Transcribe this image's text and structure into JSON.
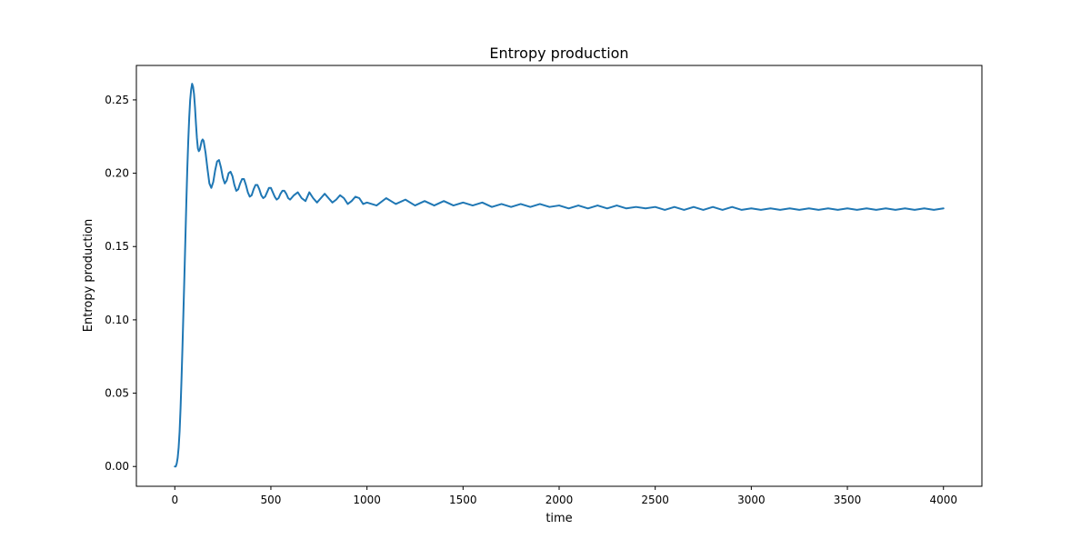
{
  "chart_data": {
    "type": "line",
    "title": "Entropy production",
    "xlabel": "time",
    "ylabel": "Entropy production",
    "xlim": [
      -200,
      4200
    ],
    "ylim": [
      -0.0135,
      0.2735
    ],
    "xticks": [
      0,
      500,
      1000,
      1500,
      2000,
      2500,
      3000,
      3500,
      4000
    ],
    "xtick_labels": [
      "0",
      "500",
      "1000",
      "1500",
      "2000",
      "2500",
      "3000",
      "3500",
      "4000"
    ],
    "yticks": [
      0.0,
      0.05,
      0.1,
      0.15,
      0.2,
      0.25
    ],
    "ytick_labels": [
      "0.00",
      "0.05",
      "0.10",
      "0.15",
      "0.20",
      "0.25"
    ],
    "grid": false,
    "series_color": "#1f77b4",
    "series": [
      {
        "x": [
          0,
          5,
          10,
          15,
          20,
          25,
          30,
          35,
          40,
          45,
          50,
          55,
          60,
          65,
          70,
          75,
          80,
          85,
          90,
          95,
          100,
          105,
          110,
          115,
          120,
          125,
          130,
          135,
          140,
          145,
          150,
          155,
          160,
          170,
          180,
          190,
          200,
          210,
          220,
          230,
          240,
          250,
          260,
          270,
          280,
          290,
          300,
          310,
          320,
          330,
          340,
          350,
          360,
          370,
          380,
          390,
          400,
          410,
          420,
          430,
          440,
          450,
          460,
          470,
          480,
          490,
          500,
          510,
          520,
          530,
          540,
          550,
          560,
          570,
          580,
          590,
          600,
          620,
          640,
          660,
          680,
          700,
          720,
          740,
          760,
          780,
          800,
          820,
          840,
          860,
          880,
          900,
          920,
          940,
          960,
          980,
          1000,
          1050,
          1100,
          1150,
          1200,
          1250,
          1300,
          1350,
          1400,
          1450,
          1500,
          1550,
          1600,
          1650,
          1700,
          1750,
          1800,
          1850,
          1900,
          1950,
          2000,
          2050,
          2100,
          2150,
          2200,
          2250,
          2300,
          2350,
          2400,
          2450,
          2500,
          2550,
          2600,
          2650,
          2700,
          2750,
          2800,
          2850,
          2900,
          2950,
          3000,
          3050,
          3100,
          3150,
          3200,
          3250,
          3300,
          3350,
          3400,
          3450,
          3500,
          3550,
          3600,
          3650,
          3700,
          3750,
          3800,
          3850,
          3900,
          3950,
          4000
        ],
        "y": [
          0.0,
          0.0,
          0.002,
          0.006,
          0.013,
          0.024,
          0.04,
          0.06,
          0.082,
          0.106,
          0.13,
          0.155,
          0.18,
          0.203,
          0.222,
          0.238,
          0.25,
          0.257,
          0.261,
          0.259,
          0.254,
          0.245,
          0.234,
          0.224,
          0.217,
          0.215,
          0.216,
          0.219,
          0.222,
          0.223,
          0.222,
          0.218,
          0.214,
          0.203,
          0.193,
          0.19,
          0.194,
          0.202,
          0.208,
          0.209,
          0.204,
          0.197,
          0.193,
          0.195,
          0.2,
          0.201,
          0.198,
          0.192,
          0.188,
          0.189,
          0.193,
          0.196,
          0.196,
          0.192,
          0.187,
          0.184,
          0.185,
          0.189,
          0.192,
          0.192,
          0.189,
          0.185,
          0.183,
          0.184,
          0.187,
          0.19,
          0.19,
          0.187,
          0.184,
          0.182,
          0.183,
          0.186,
          0.188,
          0.188,
          0.186,
          0.183,
          0.182,
          0.185,
          0.187,
          0.183,
          0.181,
          0.187,
          0.183,
          0.18,
          0.183,
          0.186,
          0.183,
          0.18,
          0.182,
          0.185,
          0.183,
          0.179,
          0.181,
          0.184,
          0.183,
          0.179,
          0.18,
          0.178,
          0.183,
          0.179,
          0.182,
          0.178,
          0.181,
          0.178,
          0.181,
          0.178,
          0.18,
          0.178,
          0.18,
          0.177,
          0.179,
          0.177,
          0.179,
          0.177,
          0.179,
          0.177,
          0.178,
          0.176,
          0.178,
          0.176,
          0.178,
          0.176,
          0.178,
          0.176,
          0.177,
          0.176,
          0.177,
          0.175,
          0.177,
          0.175,
          0.177,
          0.175,
          0.177,
          0.175,
          0.177,
          0.175,
          0.176,
          0.175,
          0.176,
          0.175,
          0.176,
          0.175,
          0.176,
          0.175,
          0.176,
          0.175,
          0.176,
          0.175,
          0.176,
          0.175,
          0.176,
          0.175,
          0.176,
          0.175,
          0.176,
          0.175,
          0.176
        ]
      }
    ]
  }
}
